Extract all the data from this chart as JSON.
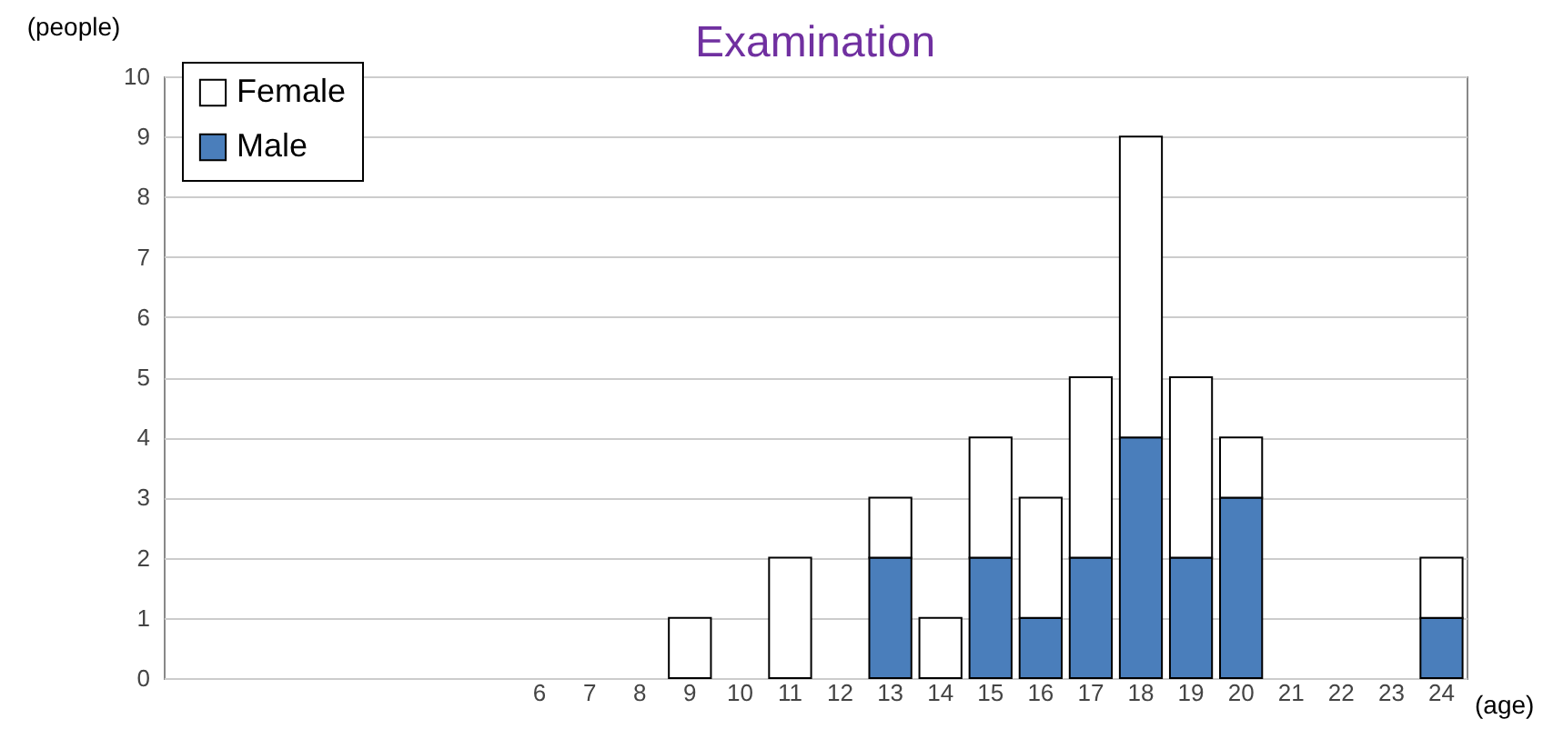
{
  "chart_data": {
    "type": "bar",
    "title": "Examination",
    "xlabel": "(age)",
    "ylabel": "(people)",
    "categories": [
      null,
      null,
      null,
      null,
      null,
      null,
      null,
      "6",
      "7",
      "8",
      "9",
      "10",
      "11",
      "12",
      "13",
      "14",
      "15",
      "16",
      "17",
      "18",
      "19",
      "20",
      "21",
      "22",
      "23",
      "24"
    ],
    "stacked": true,
    "series": [
      {
        "name": "Male",
        "color": "#4a7ebb",
        "values": [
          0,
          0,
          0,
          0,
          0,
          0,
          0,
          0,
          0,
          0,
          0,
          0,
          0,
          0,
          2,
          0,
          2,
          1,
          2,
          4,
          2,
          3,
          0,
          0,
          0,
          1
        ]
      },
      {
        "name": "Female",
        "color": "#ffffff",
        "values": [
          0,
          0,
          0,
          0,
          0,
          0,
          0,
          0,
          0,
          0,
          1,
          0,
          2,
          0,
          1,
          1,
          2,
          2,
          3,
          5,
          3,
          1,
          0,
          0,
          0,
          1
        ]
      }
    ],
    "ylim": [
      0,
      10
    ],
    "yticks": [
      0,
      1,
      2,
      3,
      4,
      5,
      6,
      7,
      8,
      9,
      10
    ],
    "grid": "y",
    "legend": "top left"
  }
}
